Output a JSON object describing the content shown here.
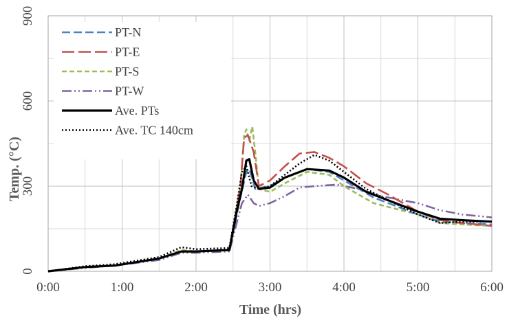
{
  "chart_data": {
    "type": "line",
    "xlabel": "Time (hrs)",
    "ylabel": "Temp. (°C)",
    "xlim": [
      0,
      6
    ],
    "ylim": [
      0,
      900
    ],
    "x_ticks": [
      "0:00",
      "1:00",
      "2:00",
      "3:00",
      "4:00",
      "5:00",
      "6:00"
    ],
    "y_ticks": [
      "0",
      "300",
      "600",
      "900"
    ],
    "grid": true,
    "legend_position": "top-left",
    "series": [
      {
        "name": "PT-N",
        "color": "#4F81BD",
        "dash": "dashed",
        "points": [
          [
            0,
            0
          ],
          [
            0.5,
            15
          ],
          [
            0.9,
            20
          ],
          [
            1.5,
            45
          ],
          [
            1.8,
            70
          ],
          [
            2.0,
            70
          ],
          [
            2.45,
            75
          ],
          [
            2.55,
            200
          ],
          [
            2.6,
            260
          ],
          [
            2.68,
            350
          ],
          [
            2.72,
            360
          ],
          [
            2.8,
            290
          ],
          [
            3.0,
            300
          ],
          [
            3.2,
            330
          ],
          [
            3.5,
            360
          ],
          [
            3.8,
            350
          ],
          [
            4.0,
            320
          ],
          [
            4.4,
            260
          ],
          [
            4.7,
            230
          ],
          [
            5.0,
            200
          ],
          [
            5.3,
            175
          ],
          [
            5.6,
            170
          ],
          [
            6.0,
            165
          ]
        ]
      },
      {
        "name": "PT-E",
        "color": "#C0504D",
        "dash": "longdash",
        "points": [
          [
            0,
            0
          ],
          [
            0.5,
            15
          ],
          [
            0.9,
            20
          ],
          [
            1.5,
            45
          ],
          [
            1.8,
            70
          ],
          [
            2.0,
            70
          ],
          [
            2.45,
            75
          ],
          [
            2.55,
            220
          ],
          [
            2.6,
            300
          ],
          [
            2.65,
            470
          ],
          [
            2.7,
            480
          ],
          [
            2.78,
            420
          ],
          [
            2.85,
            300
          ],
          [
            3.0,
            320
          ],
          [
            3.2,
            370
          ],
          [
            3.4,
            415
          ],
          [
            3.6,
            420
          ],
          [
            3.8,
            400
          ],
          [
            4.0,
            370
          ],
          [
            4.3,
            310
          ],
          [
            4.6,
            270
          ],
          [
            5.0,
            210
          ],
          [
            5.3,
            180
          ],
          [
            5.6,
            170
          ],
          [
            6.0,
            160
          ]
        ]
      },
      {
        "name": "PT-S",
        "color": "#9BBB59",
        "dash": "shortdash",
        "points": [
          [
            0,
            0
          ],
          [
            0.5,
            15
          ],
          [
            0.9,
            20
          ],
          [
            1.5,
            45
          ],
          [
            1.8,
            75
          ],
          [
            2.0,
            70
          ],
          [
            2.45,
            75
          ],
          [
            2.55,
            230
          ],
          [
            2.6,
            300
          ],
          [
            2.65,
            480
          ],
          [
            2.68,
            500
          ],
          [
            2.72,
            460
          ],
          [
            2.76,
            510
          ],
          [
            2.8,
            420
          ],
          [
            2.85,
            290
          ],
          [
            3.0,
            280
          ],
          [
            3.2,
            310
          ],
          [
            3.5,
            350
          ],
          [
            3.8,
            340
          ],
          [
            4.0,
            300
          ],
          [
            4.4,
            240
          ],
          [
            4.7,
            220
          ],
          [
            5.0,
            200
          ],
          [
            5.3,
            170
          ],
          [
            5.6,
            165
          ],
          [
            6.0,
            160
          ]
        ]
      },
      {
        "name": "PT-W",
        "color": "#8064A2",
        "dash": "dashdotdot",
        "points": [
          [
            0,
            0
          ],
          [
            0.5,
            12
          ],
          [
            0.9,
            20
          ],
          [
            1.5,
            40
          ],
          [
            1.8,
            65
          ],
          [
            2.0,
            65
          ],
          [
            2.45,
            70
          ],
          [
            2.55,
            170
          ],
          [
            2.62,
            240
          ],
          [
            2.7,
            270
          ],
          [
            2.78,
            240
          ],
          [
            2.85,
            230
          ],
          [
            3.0,
            240
          ],
          [
            3.2,
            265
          ],
          [
            3.4,
            295
          ],
          [
            3.6,
            300
          ],
          [
            3.9,
            305
          ],
          [
            4.2,
            290
          ],
          [
            4.5,
            265
          ],
          [
            4.8,
            250
          ],
          [
            5.0,
            240
          ],
          [
            5.3,
            215
          ],
          [
            5.6,
            200
          ],
          [
            6.0,
            190
          ]
        ]
      },
      {
        "name": "Ave. PTs",
        "color": "#000000",
        "dash": "solid",
        "points": [
          [
            0,
            0
          ],
          [
            0.5,
            15
          ],
          [
            0.9,
            20
          ],
          [
            1.5,
            45
          ],
          [
            1.8,
            70
          ],
          [
            2.0,
            70
          ],
          [
            2.45,
            75
          ],
          [
            2.55,
            210
          ],
          [
            2.62,
            290
          ],
          [
            2.68,
            390
          ],
          [
            2.72,
            395
          ],
          [
            2.78,
            320
          ],
          [
            2.85,
            290
          ],
          [
            3.0,
            295
          ],
          [
            3.2,
            330
          ],
          [
            3.5,
            360
          ],
          [
            3.8,
            355
          ],
          [
            4.0,
            330
          ],
          [
            4.3,
            280
          ],
          [
            4.6,
            250
          ],
          [
            5.0,
            210
          ],
          [
            5.3,
            185
          ],
          [
            5.6,
            180
          ],
          [
            6.0,
            175
          ]
        ]
      },
      {
        "name": "Ave. TC 140cm",
        "color": "#000000",
        "dash": "dotted",
        "points": [
          [
            0,
            0
          ],
          [
            0.5,
            18
          ],
          [
            0.9,
            25
          ],
          [
            1.5,
            50
          ],
          [
            1.8,
            85
          ],
          [
            2.0,
            78
          ],
          [
            2.45,
            82
          ],
          [
            2.55,
            230
          ],
          [
            2.62,
            350
          ],
          [
            2.68,
            370
          ],
          [
            2.75,
            300
          ],
          [
            2.85,
            290
          ],
          [
            3.0,
            300
          ],
          [
            3.2,
            340
          ],
          [
            3.4,
            380
          ],
          [
            3.6,
            410
          ],
          [
            3.8,
            390
          ],
          [
            4.0,
            350
          ],
          [
            4.3,
            290
          ],
          [
            4.6,
            250
          ],
          [
            5.0,
            200
          ],
          [
            5.3,
            170
          ],
          [
            5.6,
            175
          ],
          [
            6.0,
            175
          ]
        ]
      }
    ]
  }
}
